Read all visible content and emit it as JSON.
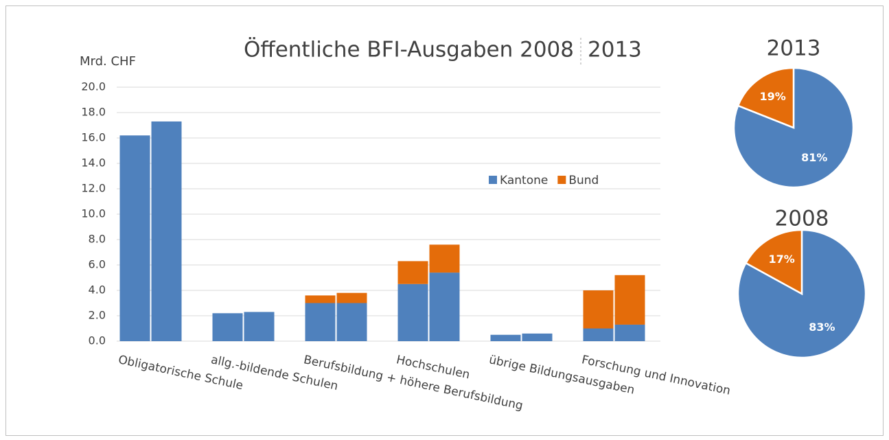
{
  "chart_data": [
    {
      "type": "bar",
      "title": "Öffentliche BFI-Ausgaben 2008",
      "title_second": "2013",
      "y_label": "Mrd. CHF",
      "categories": [
        "Obligatorische Schule",
        "allg.-bildende Schulen",
        "Berufsbildung + höhere Berufsbildung",
        "Hochschulen",
        "übrige Bildungsausgaben",
        "Forschung und Innovation"
      ],
      "series": [
        {
          "name": "Kantone",
          "color": "#4f81bd",
          "values": [
            [
              16.2,
              17.3
            ],
            [
              2.2,
              2.3
            ],
            [
              3.0,
              3.0
            ],
            [
              4.5,
              5.4
            ],
            [
              0.5,
              0.6
            ],
            [
              1.0,
              1.3
            ]
          ]
        },
        {
          "name": "Bund",
          "color": "#e46c0a",
          "values": [
            [
              0,
              0
            ],
            [
              0,
              0
            ],
            [
              0.6,
              0.8
            ],
            [
              1.8,
              2.2
            ],
            [
              0,
              0
            ],
            [
              3.0,
              3.9
            ]
          ]
        }
      ],
      "ylim": [
        0,
        20
      ],
      "yticks": [
        {
          "value": 0,
          "label": "0.0"
        },
        {
          "value": 2,
          "label": "2.0"
        },
        {
          "value": 4,
          "label": "4.0"
        },
        {
          "value": 6,
          "label": "6.0"
        },
        {
          "value": 8,
          "label": "8.0"
        },
        {
          "value": 10,
          "label": "10.0"
        },
        {
          "value": 12,
          "label": "12.0"
        },
        {
          "value": 14,
          "label": "14.0"
        },
        {
          "value": 16,
          "label": "16.0"
        },
        {
          "value": 18,
          "label": "18.0"
        },
        {
          "value": 20,
          "label": "20.0"
        }
      ],
      "grid": true
    },
    {
      "type": "pie",
      "title": "2013",
      "values": [
        81,
        19
      ],
      "value_labels": [
        "81%",
        "19%"
      ],
      "colors": [
        "#4f81bd",
        "#e46c0a"
      ]
    },
    {
      "type": "pie",
      "title": "2008",
      "values": [
        83,
        17
      ],
      "value_labels": [
        "83%",
        "17%"
      ],
      "colors": [
        "#4f81bd",
        "#e46c0a"
      ]
    }
  ]
}
